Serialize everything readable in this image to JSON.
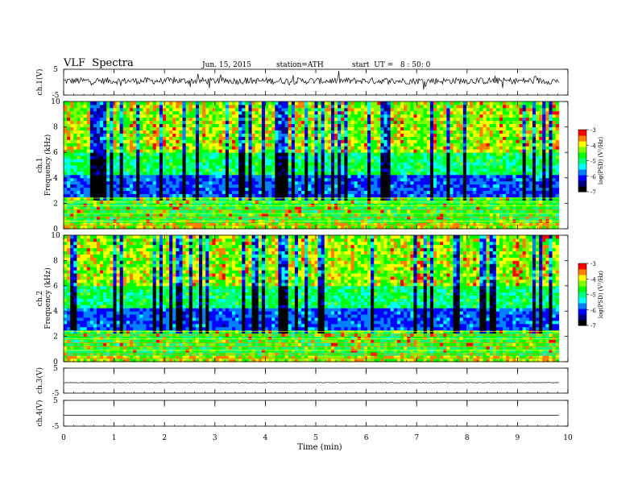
{
  "header": {
    "title": "VLF  Spectra",
    "date": "Jun. 15, 2015",
    "station": "station=ATH",
    "start_ut": "start  UT =   8 : 50: 0"
  },
  "chart_data": {
    "type": "spectrogram",
    "x_label": "Time  (min)",
    "x_range": [
      0,
      10
    ],
    "x_ticks": [
      "0",
      "1",
      "2",
      "3",
      "4",
      "5",
      "6",
      "7",
      "8",
      "9",
      "10"
    ],
    "panels": [
      {
        "id": "ch1-waveform",
        "type": "line",
        "ylabel": "ch.1(V)",
        "ylim": [
          -5,
          5
        ],
        "y_ticks": [
          "5",
          "-5"
        ],
        "baseline": 0.5,
        "amplitude": 1.3
      },
      {
        "id": "ch1-spectrogram",
        "type": "heatmap",
        "ylabel_top": "ch.1",
        "ylabel": "Frequency  (kHz)",
        "ylim": [
          0,
          10
        ],
        "y_ticks": [
          "0",
          "2",
          "4",
          "6",
          "8",
          "10"
        ],
        "colorbar": {
          "label": "log(PSD) (V²/Hz)",
          "range": [
            -7,
            -3
          ],
          "ticks": [
            "-3",
            "-4",
            "-5",
            "-6",
            "-7"
          ]
        }
      },
      {
        "id": "ch2-spectrogram",
        "type": "heatmap",
        "ylabel_top": "ch.2",
        "ylabel": "Frequency  (kHz)",
        "ylim": [
          0,
          10
        ],
        "y_ticks": [
          "0",
          "2",
          "4",
          "6",
          "8",
          "10"
        ],
        "colorbar": {
          "label": "log(PSD) (V²/Hz)",
          "range": [
            -7,
            -3
          ],
          "ticks": [
            "-3",
            "-4",
            "-5",
            "-6",
            "-7"
          ]
        }
      },
      {
        "id": "ch3-waveform",
        "type": "line",
        "ylabel": "ch.3(V)",
        "ylim": [
          -5,
          5
        ],
        "y_ticks": [
          "5",
          "-5"
        ],
        "baseline": -0.8,
        "amplitude": 0.1
      },
      {
        "id": "ch4-waveform",
        "type": "line",
        "ylabel": "ch.4(V)",
        "ylim": [
          -5,
          5
        ],
        "y_ticks": [
          "5",
          "-5"
        ],
        "baseline": -0.8,
        "amplitude": 0.0
      }
    ],
    "data_end_min": 9.82,
    "colormap": [
      "#000000",
      "#000080",
      "#0000ff",
      "#0080ff",
      "#00ffff",
      "#00ff80",
      "#00ff00",
      "#80ff00",
      "#ffff00",
      "#ff8000",
      "#ff0000",
      "#ffffff"
    ]
  }
}
